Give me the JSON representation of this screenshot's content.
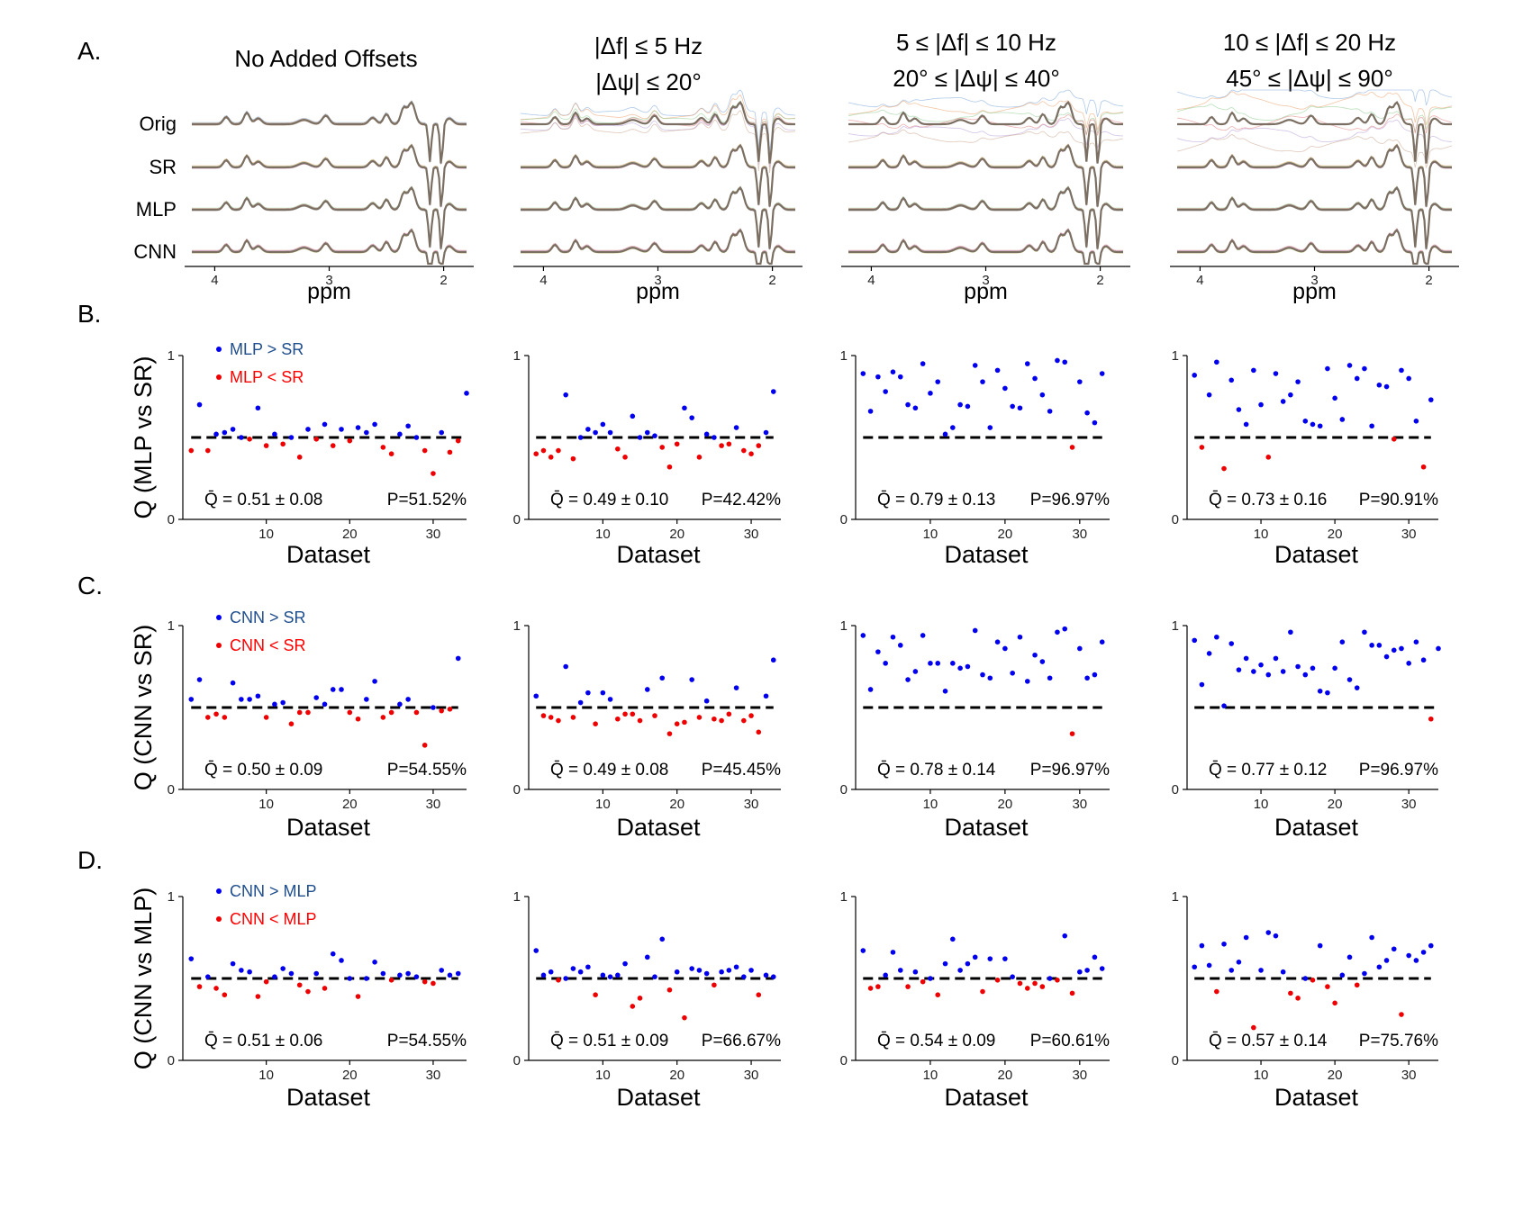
{
  "panel_labels": {
    "a": "A.",
    "b": "B.",
    "c": "C.",
    "d": "D."
  },
  "col_titles": [
    [
      "No Added Offsets"
    ],
    [
      "|Δf| ≤ 5 Hz",
      "|Δψ| ≤ 20°"
    ],
    [
      "5 ≤ |Δf| ≤ 10 Hz",
      "20° ≤ |Δψ| ≤ 40°"
    ],
    [
      "10 ≤ |Δf| ≤ 20 Hz",
      "45° ≤ |Δψ| ≤ 90°"
    ]
  ],
  "spectra": {
    "row_labels": [
      "Orig",
      "SR",
      "MLP",
      "CNN"
    ],
    "x_ticks": [
      "4",
      "3",
      "2"
    ],
    "xlabel": "ppm"
  },
  "chart_data": [
    {
      "type": "scatter",
      "row": "B",
      "ylabel": "Q (MLP vs SR)",
      "xlabel": "Dataset",
      "xlim": [
        0,
        34
      ],
      "ylim": [
        0,
        1
      ],
      "x_ticks": [
        "10",
        "20",
        "30"
      ],
      "y_ticks": [
        "0",
        "1"
      ],
      "threshold": 0.5,
      "legend": {
        "above": "MLP > SR",
        "below": "MLP < SR"
      },
      "panels": [
        {
          "values": [
            0.42,
            0.7,
            0.42,
            0.52,
            0.53,
            0.55,
            0.5,
            0.49,
            0.68,
            0.45,
            0.52,
            0.46,
            0.5,
            0.38,
            0.55,
            0.49,
            0.58,
            0.45,
            0.55,
            0.48,
            0.56,
            0.53,
            0.58,
            0.44,
            0.4,
            0.52,
            0.57,
            0.5,
            0.42,
            0.28,
            0.53,
            0.41,
            0.48,
            0.77
          ],
          "stat": "Q̄ = 0.51 ± 0.08",
          "p": "P=51.52%"
        },
        {
          "values": [
            0.4,
            0.42,
            0.38,
            0.42,
            0.76,
            0.37,
            0.5,
            0.55,
            0.53,
            0.58,
            0.53,
            0.43,
            0.38,
            0.63,
            0.5,
            0.53,
            0.51,
            0.44,
            0.32,
            0.46,
            0.68,
            0.62,
            0.38,
            0.52,
            0.5,
            0.45,
            0.46,
            0.56,
            0.42,
            0.4,
            0.45,
            0.53,
            0.78
          ],
          "stat": "Q̄ = 0.49 ± 0.10",
          "p": "P=42.42%"
        },
        {
          "values": [
            0.89,
            0.66,
            0.87,
            0.78,
            0.9,
            0.87,
            0.7,
            0.68,
            0.95,
            0.77,
            0.84,
            0.52,
            0.56,
            0.7,
            0.69,
            0.94,
            0.84,
            0.56,
            0.91,
            0.8,
            0.69,
            0.68,
            0.95,
            0.86,
            0.76,
            0.66,
            0.97,
            0.96,
            0.44,
            0.84,
            0.65,
            0.59,
            0.89
          ],
          "stat": "Q̄ = 0.79 ± 0.13",
          "p": "P=96.97%"
        },
        {
          "values": [
            0.88,
            0.44,
            0.76,
            0.96,
            0.31,
            0.85,
            0.67,
            0.58,
            0.91,
            0.7,
            0.38,
            0.89,
            0.72,
            0.76,
            0.84,
            0.6,
            0.58,
            0.57,
            0.92,
            0.74,
            0.61,
            0.94,
            0.86,
            0.92,
            0.57,
            0.82,
            0.81,
            0.49,
            0.91,
            0.86,
            0.6,
            0.32,
            0.73
          ],
          "stat": "Q̄ = 0.73 ± 0.16",
          "p": "P=90.91%"
        }
      ]
    },
    {
      "type": "scatter",
      "row": "C",
      "ylabel": "Q (CNN vs SR)",
      "xlabel": "Dataset",
      "xlim": [
        0,
        34
      ],
      "ylim": [
        0,
        1
      ],
      "x_ticks": [
        "10",
        "20",
        "30"
      ],
      "y_ticks": [
        "0",
        "1"
      ],
      "threshold": 0.5,
      "legend": {
        "above": "CNN > SR",
        "below": "CNN < SR"
      },
      "panels": [
        {
          "values": [
            0.55,
            0.67,
            0.44,
            0.46,
            0.44,
            0.65,
            0.55,
            0.55,
            0.57,
            0.44,
            0.52,
            0.53,
            0.4,
            0.47,
            0.47,
            0.56,
            0.52,
            0.61,
            0.61,
            0.47,
            0.43,
            0.55,
            0.66,
            0.44,
            0.47,
            0.52,
            0.55,
            0.47,
            0.27,
            0.5,
            0.48,
            0.49,
            0.8
          ],
          "stat": "Q̄ = 0.50 ± 0.09",
          "p": "P=54.55%"
        },
        {
          "values": [
            0.57,
            0.45,
            0.44,
            0.42,
            0.75,
            0.44,
            0.53,
            0.59,
            0.4,
            0.59,
            0.55,
            0.43,
            0.46,
            0.46,
            0.42,
            0.61,
            0.45,
            0.68,
            0.34,
            0.4,
            0.41,
            0.67,
            0.44,
            0.54,
            0.43,
            0.42,
            0.46,
            0.62,
            0.42,
            0.45,
            0.35,
            0.57,
            0.79
          ],
          "stat": "Q̄ = 0.49 ± 0.08",
          "p": "P=45.45%"
        },
        {
          "values": [
            0.94,
            0.61,
            0.84,
            0.77,
            0.93,
            0.88,
            0.67,
            0.72,
            0.94,
            0.77,
            0.77,
            0.6,
            0.77,
            0.74,
            0.75,
            0.97,
            0.7,
            0.68,
            0.9,
            0.86,
            0.71,
            0.93,
            0.66,
            0.82,
            0.78,
            0.68,
            0.96,
            0.98,
            0.34,
            0.86,
            0.68,
            0.7,
            0.9
          ],
          "stat": "Q̄ = 0.78 ± 0.14",
          "p": "P=96.97%"
        },
        {
          "values": [
            0.91,
            0.64,
            0.83,
            0.93,
            0.51,
            0.89,
            0.73,
            0.8,
            0.72,
            0.76,
            0.7,
            0.8,
            0.72,
            0.96,
            0.75,
            0.7,
            0.74,
            0.6,
            0.59,
            0.74,
            0.9,
            0.67,
            0.62,
            0.96,
            0.88,
            0.88,
            0.81,
            0.85,
            0.86,
            0.77,
            0.9,
            0.79,
            0.43,
            0.86
          ],
          "stat": "Q̄ = 0.77 ± 0.12",
          "p": "P=96.97%"
        }
      ]
    },
    {
      "type": "scatter",
      "row": "D",
      "ylabel": "Q (CNN vs MLP)",
      "xlabel": "Dataset",
      "xlim": [
        0,
        34
      ],
      "ylim": [
        0,
        1
      ],
      "x_ticks": [
        "10",
        "20",
        "30"
      ],
      "y_ticks": [
        "0",
        "1"
      ],
      "threshold": 0.5,
      "legend": {
        "above": "CNN > MLP",
        "below": "CNN < MLP"
      },
      "panels": [
        {
          "values": [
            0.62,
            0.45,
            0.51,
            0.44,
            0.4,
            0.59,
            0.55,
            0.54,
            0.39,
            0.48,
            0.51,
            0.56,
            0.53,
            0.46,
            0.42,
            0.53,
            0.44,
            0.65,
            0.61,
            0.5,
            0.39,
            0.5,
            0.6,
            0.53,
            0.49,
            0.52,
            0.53,
            0.51,
            0.48,
            0.47,
            0.55,
            0.52,
            0.53
          ],
          "stat": "Q̄ = 0.51 ± 0.06",
          "p": "P=54.55%"
        },
        {
          "values": [
            0.67,
            0.52,
            0.54,
            0.49,
            0.5,
            0.56,
            0.54,
            0.57,
            0.4,
            0.52,
            0.51,
            0.52,
            0.59,
            0.33,
            0.38,
            0.63,
            0.51,
            0.74,
            0.43,
            0.54,
            0.26,
            0.56,
            0.55,
            0.53,
            0.46,
            0.54,
            0.55,
            0.57,
            0.51,
            0.55,
            0.4,
            0.52,
            0.51
          ],
          "stat": "Q̄ = 0.51 ± 0.09",
          "p": "P=66.67%"
        },
        {
          "values": [
            0.67,
            0.44,
            0.45,
            0.52,
            0.66,
            0.55,
            0.45,
            0.54,
            0.48,
            0.5,
            0.4,
            0.59,
            0.74,
            0.55,
            0.59,
            0.63,
            0.42,
            0.62,
            0.49,
            0.62,
            0.51,
            0.47,
            0.44,
            0.47,
            0.45,
            0.5,
            0.49,
            0.76,
            0.41,
            0.54,
            0.55,
            0.63,
            0.56
          ],
          "stat": "Q̄ = 0.54 ± 0.09",
          "p": "P=60.61%"
        },
        {
          "values": [
            0.57,
            0.7,
            0.58,
            0.42,
            0.71,
            0.55,
            0.6,
            0.75,
            0.2,
            0.55,
            0.78,
            0.76,
            0.54,
            0.41,
            0.38,
            0.5,
            0.49,
            0.7,
            0.45,
            0.35,
            0.52,
            0.63,
            0.46,
            0.53,
            0.75,
            0.57,
            0.61,
            0.68,
            0.28,
            0.64,
            0.61,
            0.66,
            0.7
          ],
          "stat": "Q̄ = 0.57 ± 0.14",
          "p": "P=75.76%"
        }
      ]
    }
  ],
  "colors": {
    "above": "#0000ee",
    "below": "#ee0000",
    "legend_above_text": "#1f4e8c",
    "legend_below_text": "#ff0000",
    "threshold": "#000000"
  }
}
